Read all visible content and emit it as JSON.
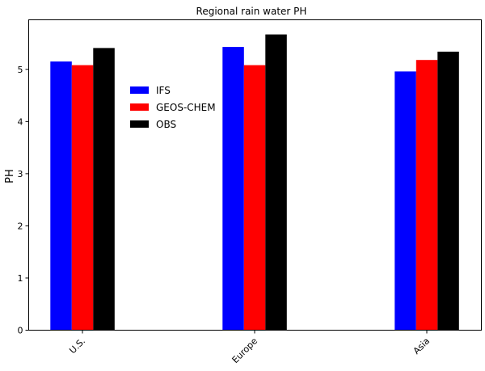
{
  "chart_data": {
    "type": "bar",
    "title": "Regional rain water PH",
    "xlabel": "",
    "ylabel": "PH",
    "categories": [
      "U.S.",
      "Europe",
      "Asia"
    ],
    "series": [
      {
        "name": "IFS",
        "color": "#0000ff",
        "values": [
          5.15,
          5.43,
          4.96
        ]
      },
      {
        "name": "GEOS-CHEM",
        "color": "#ff0000",
        "values": [
          5.08,
          5.08,
          5.18
        ]
      },
      {
        "name": "OBS",
        "color": "#000000",
        "values": [
          5.41,
          5.67,
          5.34
        ]
      }
    ],
    "ylim": [
      0,
      5.95
    ],
    "yticks": [
      0,
      1,
      2,
      3,
      4,
      5
    ],
    "grid": false,
    "legend_position": "upper-left-center",
    "tick_label_rotation": 45
  }
}
